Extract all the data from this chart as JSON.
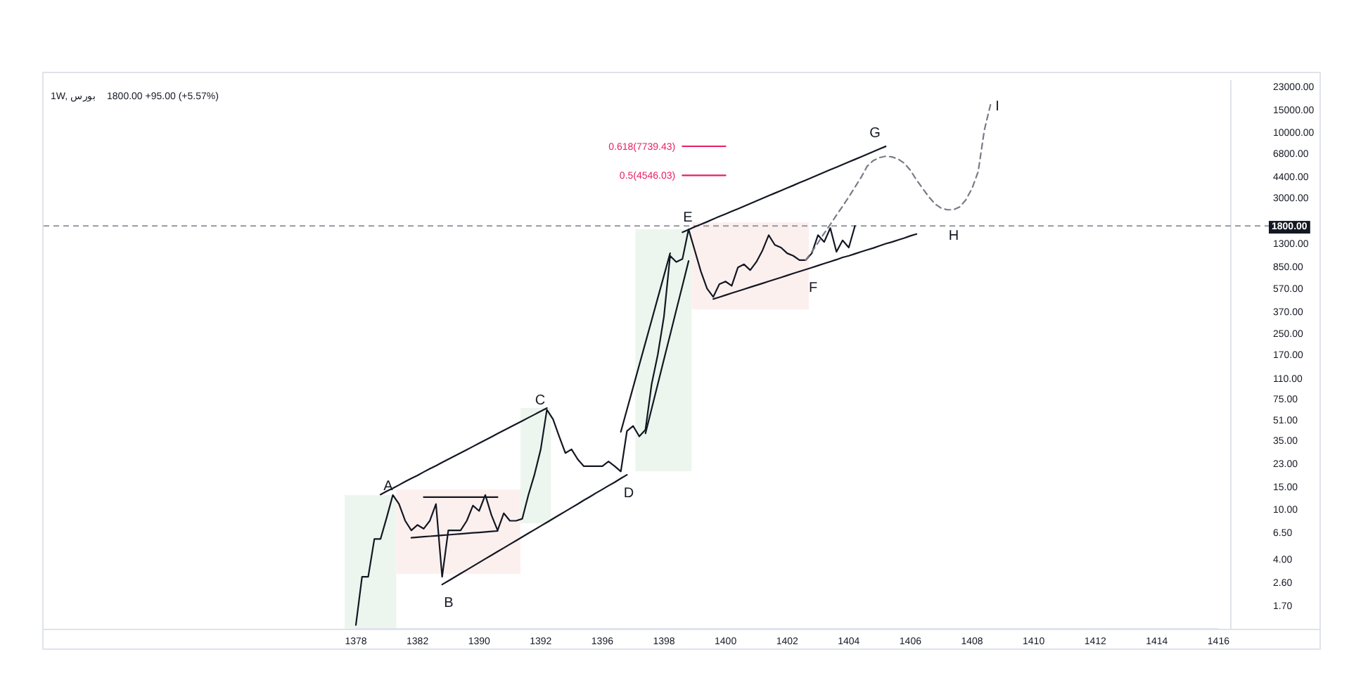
{
  "chart_data": {
    "type": "line",
    "title": "1W, بورس",
    "subtitle": "1800.00   +95.00 (+5.57%)",
    "log": "y",
    "categories": [
      "1378",
      null,
      null,
      null,
      null,
      null,
      null,
      null,
      null,
      null,
      "1382",
      null,
      null,
      null,
      null,
      null,
      null,
      null,
      null,
      null,
      "1390",
      null,
      null,
      null,
      null,
      null,
      null,
      null,
      null,
      null,
      "1392",
      null,
      null,
      null,
      null,
      null,
      null,
      null,
      null,
      null,
      "1396",
      null,
      null,
      null,
      null,
      null,
      null,
      null,
      null,
      null,
      "1398",
      null,
      null,
      null,
      null,
      null,
      null,
      null,
      null,
      null,
      "1400",
      null,
      null,
      null,
      null,
      null,
      null,
      null,
      null,
      null,
      "1402",
      null,
      null,
      null,
      null,
      null,
      null,
      null,
      null,
      null,
      "1404",
      null,
      null,
      null,
      null,
      null,
      null,
      null,
      null,
      null,
      "1406",
      null,
      null,
      null,
      null,
      null,
      null,
      null,
      null,
      null,
      "1408",
      null,
      null,
      null,
      null,
      null,
      null,
      null,
      null,
      null,
      "1410",
      null,
      null,
      null,
      null,
      null,
      null,
      null,
      null,
      null,
      "1412",
      null,
      null,
      null,
      null,
      null,
      null,
      null,
      null,
      null,
      "1414",
      null,
      null,
      null,
      null,
      null,
      null,
      null,
      null,
      null,
      "1416"
    ],
    "ylim": [
      1.12,
      26000
    ],
    "yticks": [
      {
        "value": 1.7,
        "label": "1.70"
      },
      {
        "value": 2.6,
        "label": "2.60"
      },
      {
        "value": 4,
        "label": "4.00"
      },
      {
        "value": 6.5,
        "label": "6.50"
      },
      {
        "value": 10,
        "label": "10.00"
      },
      {
        "value": 15,
        "label": "15.00"
      },
      {
        "value": 23,
        "label": "23.00"
      },
      {
        "value": 35,
        "label": "35.00"
      },
      {
        "value": 51,
        "label": "51.00"
      },
      {
        "value": 75,
        "label": "75.00"
      },
      {
        "value": 110,
        "label": "110.00"
      },
      {
        "value": 170,
        "label": "170.00"
      },
      {
        "value": 250,
        "label": "250.00"
      },
      {
        "value": 370,
        "label": "370.00"
      },
      {
        "value": 570,
        "label": "570.00"
      },
      {
        "value": 850,
        "label": "850.00"
      },
      {
        "value": 1300,
        "label": "1300.00"
      },
      {
        "value": 3000,
        "label": "3000.00"
      },
      {
        "value": 4400,
        "label": "4400.00"
      },
      {
        "value": 6800,
        "label": "6800.00"
      },
      {
        "value": 10000,
        "label": "10000.00"
      },
      {
        "value": 15000,
        "label": "15000.00"
      },
      {
        "value": 23000,
        "label": "23000.00"
      }
    ],
    "ref_lines": [
      {
        "axis": "y",
        "value": 1800,
        "label": "1800.00",
        "color": "#9598a1",
        "line_style": "dashed"
      }
    ],
    "annotations": [
      "A",
      "B",
      "C",
      "D",
      "E",
      "F",
      "G",
      "H",
      "I"
    ],
    "series": [
      {
        "color": "#131722",
        "values": [
          1.2,
          2.9,
          2.9,
          5.8,
          5.8,
          8.6,
          13,
          11,
          8.1,
          6.8,
          7.5,
          7,
          8.1,
          11,
          2.9,
          6.8,
          6.8,
          6.8,
          8.1,
          10.7,
          9.7,
          13,
          9,
          6.8,
          9.3,
          8.1,
          8.1,
          8.4,
          13,
          19,
          30,
          62,
          52,
          38,
          28,
          30,
          25,
          22,
          22,
          22,
          22,
          24,
          22,
          20,
          42,
          46,
          38,
          43,
          99,
          170,
          342,
          1040,
          930,
          980,
          1690,
          1150,
          780,
          570,
          490,
          620,
          650,
          600,
          840,
          890,
          800,
          930,
          1150,
          1520,
          1270,
          1210,
          1090,
          1040,
          960,
          960,
          1090,
          1520,
          1340,
          1730,
          1120,
          1380,
          1210,
          1800,
          null,
          null,
          null,
          null,
          null,
          null,
          null,
          null,
          null,
          null,
          null,
          null,
          null,
          null,
          null,
          null,
          null,
          null,
          null,
          null,
          null,
          null,
          null,
          null,
          null,
          null,
          null,
          null,
          null,
          null,
          null,
          null,
          null,
          null,
          null,
          null,
          null,
          null,
          null,
          null,
          null,
          null,
          null,
          null,
          null,
          null,
          null,
          null,
          null,
          null,
          null,
          null,
          null,
          null,
          null,
          null,
          null,
          null,
          null
        ]
      },
      {
        "color": "#787b86",
        "line_style": "dashed",
        "values": [
          null,
          null,
          null,
          null,
          null,
          null,
          null,
          null,
          null,
          null,
          null,
          null,
          null,
          null,
          null,
          null,
          null,
          null,
          null,
          null,
          null,
          null,
          null,
          null,
          null,
          null,
          null,
          null,
          null,
          null,
          null,
          null,
          null,
          null,
          null,
          null,
          null,
          null,
          null,
          null,
          null,
          null,
          null,
          null,
          null,
          null,
          null,
          null,
          null,
          null,
          null,
          null,
          null,
          null,
          null,
          null,
          null,
          null,
          null,
          null,
          null,
          null,
          null,
          null,
          null,
          null,
          null,
          null,
          null,
          null,
          null,
          null,
          null,
          960,
          1120,
          1320,
          1570,
          1850,
          2190,
          2580,
          3060,
          3660,
          4380,
          5390,
          5970,
          6290,
          6450,
          6370,
          6130,
          5680,
          4990,
          4170,
          3570,
          3060,
          2690,
          2490,
          2420,
          2420,
          2550,
          2900,
          3570,
          4860,
          10400,
          16600,
          null,
          null,
          null,
          null,
          null,
          null,
          null,
          null,
          null,
          null,
          null,
          null,
          null,
          null,
          null,
          null,
          null,
          null,
          null,
          null,
          null,
          null,
          null,
          null,
          null,
          null,
          null,
          null,
          null,
          null,
          null,
          null,
          null,
          null,
          null,
          null,
          null
        ]
      },
      {
        "color": "#131722",
        "values": [
          null,
          null,
          null,
          null,
          13.1,
          13.9,
          14.7,
          15.6,
          16.6,
          17.6,
          18.6,
          19.8,
          21.0,
          22.2,
          23.6,
          25.0,
          26.5,
          28.1,
          29.8,
          31.6,
          33.5,
          35.5,
          37.7,
          40.0,
          42.4,
          44.9,
          47.6,
          50.5,
          53.6,
          56.8,
          60.2,
          63.9,
          null,
          null,
          null,
          null,
          null,
          null,
          null,
          null,
          null,
          null,
          null,
          null,
          null,
          null,
          null,
          null,
          null,
          null,
          null,
          null,
          null,
          null,
          null,
          null,
          null,
          null,
          null,
          null,
          null,
          null,
          null,
          null,
          null,
          null,
          null,
          null,
          null,
          null,
          null,
          null,
          null,
          null,
          null,
          null,
          null,
          null,
          null,
          null,
          null,
          null,
          null,
          null,
          null,
          null,
          null,
          null,
          null,
          null,
          null,
          null,
          null,
          null,
          null,
          null,
          null,
          null,
          null,
          null,
          null,
          null,
          null,
          null,
          null,
          null,
          null,
          null,
          null,
          null,
          null,
          null,
          null,
          null,
          null,
          null,
          null,
          null,
          null,
          null,
          null,
          null,
          null,
          null,
          null,
          null,
          null,
          null,
          null,
          null,
          null,
          null,
          null,
          null,
          null,
          null,
          null,
          null,
          null,
          null,
          null
        ]
      },
      {
        "color": "#131722",
        "values": [
          null,
          null,
          null,
          null,
          null,
          null,
          null,
          null,
          null,
          null,
          null,
          null,
          null,
          null,
          2.52,
          2.69,
          2.88,
          3.08,
          3.29,
          3.52,
          3.77,
          4.03,
          4.31,
          4.61,
          4.92,
          5.27,
          5.63,
          6.02,
          6.44,
          6.88,
          7.36,
          7.87,
          8.42,
          9.0,
          9.62,
          10.3,
          11.0,
          11.8,
          12.6,
          13.5,
          14.4,
          15.4,
          16.4,
          17.6,
          18.8,
          null,
          null,
          null,
          null,
          null,
          null,
          null,
          null,
          null,
          null,
          null,
          null,
          null,
          null,
          null,
          null,
          null,
          null,
          null,
          null,
          null,
          null,
          null,
          null,
          null,
          null,
          null,
          null,
          null,
          null,
          null,
          null,
          null,
          null,
          null,
          null,
          null,
          null,
          null,
          null,
          null,
          null,
          null,
          null,
          null,
          null,
          null,
          null,
          null,
          null,
          null,
          null,
          null,
          null,
          null,
          null,
          null,
          null,
          null,
          null,
          null,
          null,
          null,
          null,
          null,
          null,
          null,
          null,
          null,
          null,
          null,
          null,
          null,
          null,
          null,
          null,
          null,
          null,
          null,
          null,
          null,
          null,
          null,
          null,
          null,
          null,
          null,
          null,
          null,
          null,
          null,
          null,
          null,
          null,
          null,
          null
        ]
      },
      {
        "color": "#131722",
        "values": [
          null,
          null,
          null,
          null,
          null,
          null,
          null,
          null,
          null,
          null,
          null,
          null,
          null,
          null,
          null,
          null,
          null,
          null,
          null,
          null,
          null,
          null,
          null,
          null,
          null,
          null,
          null,
          null,
          null,
          null,
          null,
          null,
          null,
          null,
          null,
          null,
          null,
          null,
          null,
          null,
          null,
          null,
          null,
          null,
          null,
          null,
          null,
          null,
          null,
          null,
          null,
          null,
          null,
          1600,
          1680,
          1770,
          1850,
          1940,
          2040,
          2140,
          2240,
          2350,
          2460,
          2580,
          2710,
          2840,
          2980,
          3130,
          3280,
          3440,
          3610,
          3780,
          3970,
          4160,
          4360,
          4580,
          4800,
          5040,
          5280,
          5540,
          5810,
          6090,
          6390,
          6700,
          7030,
          7370,
          7730,
          null,
          null,
          null,
          null,
          null,
          null,
          null,
          null,
          null,
          null,
          null,
          null,
          null,
          null,
          null,
          null,
          null,
          null,
          null,
          null,
          null,
          null,
          null,
          null,
          null,
          null,
          null,
          null,
          null,
          null,
          null,
          null,
          null,
          null,
          null,
          null,
          null,
          null,
          null,
          null,
          null,
          null,
          null,
          null,
          null,
          null,
          null,
          null,
          null,
          null,
          null,
          null,
          null,
          null
        ]
      },
      {
        "color": "#131722",
        "values": [
          null,
          null,
          null,
          null,
          null,
          null,
          null,
          null,
          null,
          null,
          null,
          null,
          null,
          null,
          null,
          null,
          null,
          null,
          null,
          null,
          null,
          null,
          null,
          null,
          null,
          null,
          null,
          null,
          null,
          null,
          null,
          null,
          null,
          null,
          null,
          null,
          null,
          null,
          null,
          null,
          null,
          null,
          null,
          null,
          null,
          null,
          null,
          null,
          null,
          null,
          null,
          null,
          null,
          null,
          null,
          null,
          null,
          null,
          471,
          488,
          506,
          525,
          544,
          564,
          585,
          606,
          628,
          652,
          676,
          700,
          726,
          753,
          781,
          809,
          839,
          870,
          902,
          935,
          970,
          1010,
          1040,
          1080,
          1120,
          1160,
          1200,
          1250,
          1300,
          1340,
          1390,
          1440,
          1500,
          1550,
          null,
          null,
          null,
          null,
          null,
          null,
          null,
          null,
          null,
          null,
          null,
          null,
          null,
          null,
          null,
          null,
          null,
          null,
          null,
          null,
          null,
          null,
          null,
          null,
          null,
          null,
          null,
          null,
          null,
          null,
          null,
          null,
          null,
          null,
          null,
          null,
          null,
          null,
          null,
          null,
          null,
          null,
          null,
          null,
          null,
          null,
          null,
          null,
          null
        ]
      },
      {
        "color": "#131722",
        "values": [
          null,
          null,
          null,
          null,
          null,
          null,
          null,
          null,
          null,
          null,
          null,
          12.5,
          12.5,
          12.5,
          12.5,
          12.5,
          12.5,
          12.5,
          12.5,
          12.5,
          12.5,
          12.5,
          12.5,
          12.5,
          null,
          null,
          null,
          null,
          null,
          null,
          null,
          null,
          null,
          null,
          null,
          null,
          null,
          null,
          null,
          null,
          null,
          null,
          null,
          null,
          null,
          null,
          null,
          null,
          null,
          null,
          null,
          null,
          null,
          null,
          null,
          null,
          null,
          null,
          null,
          null,
          null,
          null,
          null,
          null,
          null,
          null,
          null,
          null,
          null,
          null,
          null,
          null,
          null,
          null,
          null,
          null,
          null,
          null,
          null,
          null,
          null,
          null,
          null,
          null,
          null,
          null,
          null,
          null,
          null,
          null,
          null,
          null,
          null,
          null,
          null,
          null,
          null,
          null,
          null,
          null,
          null,
          null,
          null,
          null,
          null,
          null,
          null,
          null,
          null,
          null,
          null,
          null,
          null,
          null,
          null,
          null,
          null,
          null,
          null,
          null,
          null,
          null,
          null,
          null,
          null,
          null,
          null,
          null,
          null,
          null,
          null,
          null,
          null,
          null,
          null,
          null,
          null,
          null,
          null,
          null,
          null
        ]
      },
      {
        "color": "#131722",
        "values": [
          null,
          null,
          null,
          null,
          null,
          null,
          null,
          null,
          null,
          5.94,
          5.99,
          6.05,
          6.1,
          6.15,
          6.21,
          6.26,
          6.32,
          6.37,
          6.43,
          6.49,
          6.54,
          6.6,
          6.66,
          6.72,
          null,
          null,
          null,
          null,
          null,
          null,
          null,
          null,
          null,
          null,
          null,
          null,
          null,
          null,
          null,
          null,
          null,
          null,
          null,
          null,
          null,
          null,
          null,
          null,
          null,
          null,
          null,
          null,
          null,
          null,
          null,
          null,
          null,
          null,
          null,
          null,
          null,
          null,
          null,
          null,
          null,
          null,
          null,
          null,
          null,
          null,
          null,
          null,
          null,
          null,
          null,
          null,
          null,
          null,
          null,
          null,
          null,
          null,
          null,
          null,
          null,
          null,
          null,
          null,
          null,
          null,
          null,
          null,
          null,
          null,
          null,
          null,
          null,
          null,
          null,
          null,
          null,
          null,
          null,
          null,
          null,
          null,
          null,
          null,
          null,
          null,
          null,
          null,
          null,
          null,
          null,
          null,
          null,
          null,
          null,
          null,
          null,
          null,
          null,
          null,
          null,
          null,
          null,
          null,
          null,
          null,
          null,
          null,
          null,
          null,
          null,
          null,
          null,
          null,
          null,
          null,
          null
        ]
      },
      {
        "color": "#131722",
        "values": [
          null,
          null,
          null,
          null,
          null,
          null,
          null,
          null,
          null,
          null,
          null,
          null,
          null,
          null,
          null,
          null,
          null,
          null,
          null,
          null,
          null,
          null,
          null,
          null,
          null,
          null,
          null,
          null,
          null,
          null,
          null,
          null,
          null,
          null,
          null,
          null,
          null,
          null,
          null,
          null,
          null,
          null,
          null,
          41.3,
          62.2,
          93.6,
          141,
          212,
          319,
          481,
          724,
          1090,
          null,
          null,
          null,
          null,
          null,
          null,
          null,
          null,
          null,
          null,
          null,
          null,
          null,
          null,
          null,
          null,
          null,
          null,
          null,
          null,
          null,
          null,
          null,
          null,
          null,
          null,
          null,
          null,
          null,
          null,
          null,
          null,
          null,
          null,
          null,
          null,
          null,
          null,
          null,
          null,
          null,
          null,
          null,
          null,
          null,
          null,
          null,
          null,
          null,
          null,
          null,
          null,
          null,
          null,
          null,
          null,
          null,
          null,
          null,
          null,
          null,
          null,
          null,
          null,
          null,
          null,
          null,
          null,
          null,
          null,
          null,
          null,
          null,
          null,
          null,
          null,
          null,
          null,
          null,
          null,
          null,
          null,
          null,
          null,
          null,
          null,
          null,
          null,
          null
        ]
      },
      {
        "color": "#131722",
        "values": [
          null,
          null,
          null,
          null,
          null,
          null,
          null,
          null,
          null,
          null,
          null,
          null,
          null,
          null,
          null,
          null,
          null,
          null,
          null,
          null,
          null,
          null,
          null,
          null,
          null,
          null,
          null,
          null,
          null,
          null,
          null,
          null,
          null,
          null,
          null,
          null,
          null,
          null,
          null,
          null,
          null,
          null,
          null,
          null,
          null,
          null,
          null,
          40.2,
          63.1,
          99.1,
          156,
          244,
          384,
          602,
          946,
          null,
          null,
          null,
          null,
          null,
          null,
          null,
          null,
          null,
          null,
          null,
          null,
          null,
          null,
          null,
          null,
          null,
          null,
          null,
          null,
          null,
          null,
          null,
          null,
          null,
          null,
          null,
          null,
          null,
          null,
          null,
          null,
          null,
          null,
          null,
          null,
          null,
          null,
          null,
          null,
          null,
          null,
          null,
          null,
          null,
          null,
          null,
          null,
          null,
          null,
          null,
          null,
          null,
          null,
          null,
          null,
          null,
          null,
          null,
          null,
          null,
          null,
          null,
          null,
          null,
          null,
          null,
          null,
          null,
          null,
          null,
          null,
          null,
          null,
          null,
          null,
          null,
          null,
          null,
          null,
          null,
          null,
          null,
          null,
          null,
          null
        ]
      },
      {
        "name": "0.618(7739.43)",
        "color": "#e91e63",
        "values": [
          null,
          null,
          null,
          null,
          null,
          null,
          null,
          null,
          null,
          null,
          null,
          null,
          null,
          null,
          null,
          null,
          null,
          null,
          null,
          null,
          null,
          null,
          null,
          null,
          null,
          null,
          null,
          null,
          null,
          null,
          null,
          null,
          null,
          null,
          null,
          null,
          null,
          null,
          null,
          null,
          null,
          null,
          null,
          null,
          null,
          null,
          null,
          null,
          null,
          null,
          null,
          null,
          null,
          7739.43,
          7739.43,
          7739.43,
          7739.43,
          7739.43,
          7739.43,
          7739.43,
          7739.43,
          null,
          null,
          null,
          null,
          null,
          null,
          null,
          null,
          null,
          null,
          null,
          null,
          null,
          null,
          null,
          null,
          null,
          null,
          null,
          null,
          null,
          null,
          null,
          null,
          null,
          null,
          null,
          null,
          null,
          null,
          null,
          null,
          null,
          null,
          null,
          null,
          null,
          null,
          null,
          null,
          null,
          null,
          null,
          null,
          null,
          null,
          null,
          null,
          null,
          null,
          null,
          null,
          null,
          null,
          null,
          null,
          null,
          null,
          null,
          null,
          null,
          null,
          null,
          null,
          null,
          null,
          null,
          null,
          null,
          null,
          null,
          null,
          null,
          null,
          null,
          null,
          null,
          null,
          null,
          null
        ]
      },
      {
        "name": "0.5(4546.03)",
        "color": "#e91e63",
        "values": [
          null,
          null,
          null,
          null,
          null,
          null,
          null,
          null,
          null,
          null,
          null,
          null,
          null,
          null,
          null,
          null,
          null,
          null,
          null,
          null,
          null,
          null,
          null,
          null,
          null,
          null,
          null,
          null,
          null,
          null,
          null,
          null,
          null,
          null,
          null,
          null,
          null,
          null,
          null,
          null,
          null,
          null,
          null,
          null,
          null,
          null,
          null,
          null,
          null,
          null,
          null,
          null,
          null,
          4546.03,
          4546.03,
          4546.03,
          4546.03,
          4546.03,
          4546.03,
          4546.03,
          4546.03,
          null,
          null,
          null,
          null,
          null,
          null,
          null,
          null,
          null,
          null,
          null,
          null,
          null,
          null,
          null,
          null,
          null,
          null,
          null,
          null,
          null,
          null,
          null,
          null,
          null,
          null,
          null,
          null,
          null,
          null,
          null,
          null,
          null,
          null,
          null,
          null,
          null,
          null,
          null,
          null,
          null,
          null,
          null,
          null,
          null,
          null,
          null,
          null,
          null,
          null,
          null,
          null,
          null,
          null,
          null,
          null,
          null,
          null,
          null,
          null,
          null,
          null,
          null,
          null,
          null,
          null,
          null,
          null,
          null,
          null,
          null,
          null,
          null,
          null,
          null,
          null,
          null,
          null,
          null,
          null
        ]
      }
    ]
  }
}
